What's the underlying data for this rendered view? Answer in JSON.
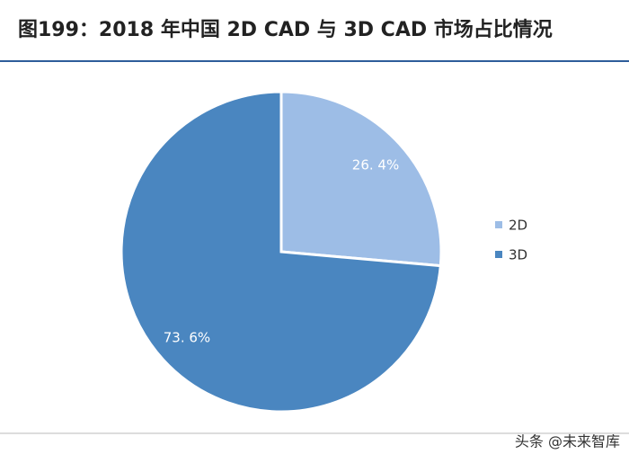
{
  "chart_data": {
    "type": "pie",
    "title": "图199：2018 年中国 2D CAD 与 3D CAD 市场占比情况",
    "categories": [
      "2D",
      "3D"
    ],
    "values": [
      26.4,
      73.6
    ],
    "value_labels": [
      "26. 4%",
      "73. 6%"
    ],
    "colors": [
      "#9dbde6",
      "#4a86c0"
    ],
    "legend": "right"
  },
  "watermark": "头条 @未来智库"
}
